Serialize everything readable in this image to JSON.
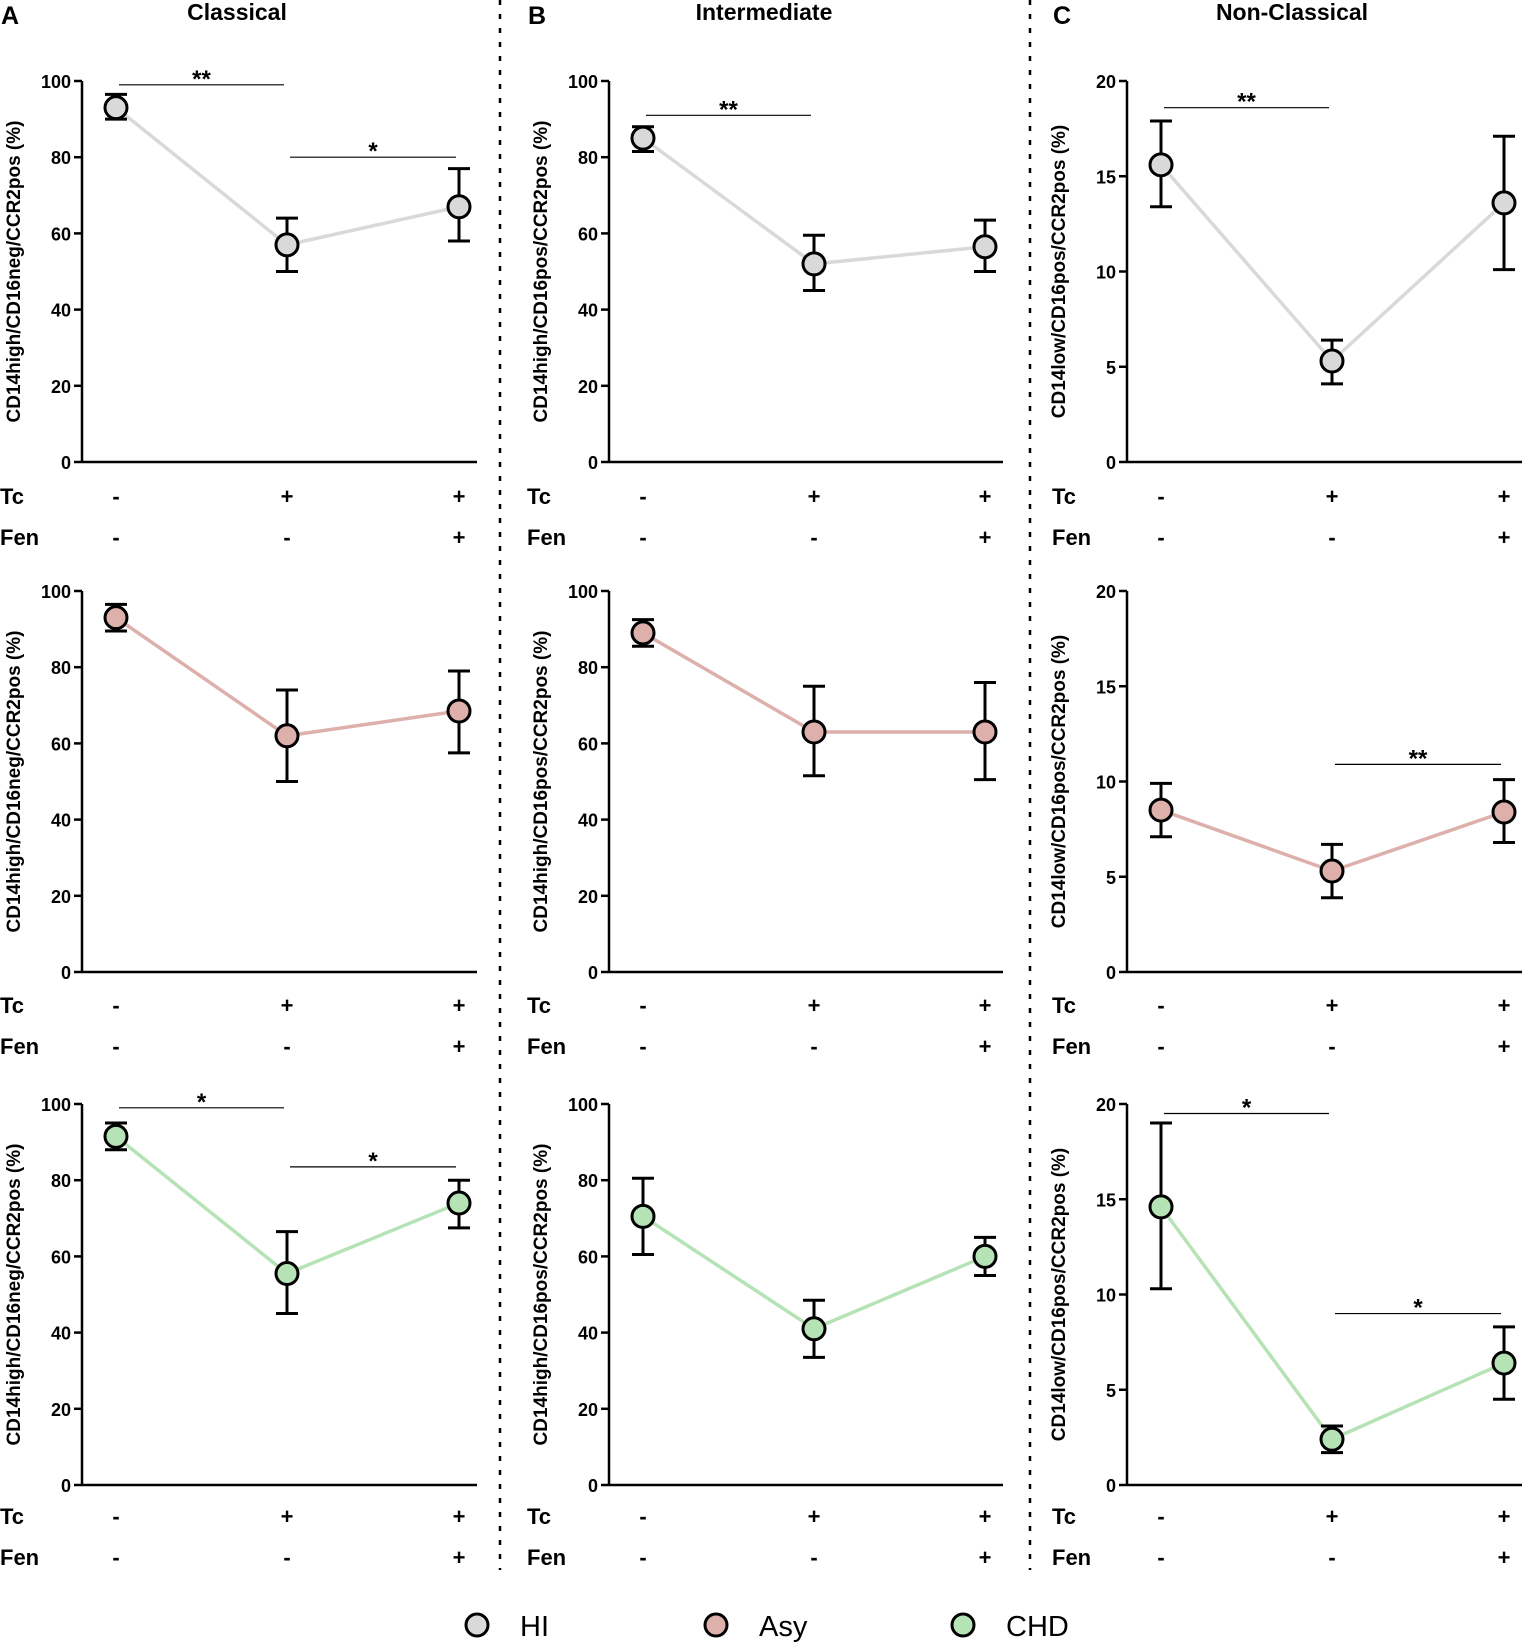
{
  "colors": {
    "HI": "#d9d9d9",
    "Asy": "#ddb0ab",
    "CHD": "#b6e3b5",
    "axis": "#000000",
    "divider": "#000000"
  },
  "legend": [
    {
      "key": "HI",
      "label": "HI"
    },
    {
      "key": "Asy",
      "label": "Asy"
    },
    {
      "key": "CHD",
      "label": "CHD"
    }
  ],
  "conditions": {
    "row1_label": "Tc",
    "row2_label": "Fen",
    "tc": [
      "-",
      "+",
      "+"
    ],
    "fen": [
      "-",
      "-",
      "+"
    ]
  },
  "chart_data": [
    {
      "type": "line",
      "panel": "A",
      "column_title": "Classical",
      "group": "HI",
      "ylabel": "CD14high/CD16neg/CCR2pos (%)",
      "ylim": [
        0,
        100
      ],
      "yticks": [
        0,
        20,
        40,
        60,
        80,
        100
      ],
      "values": [
        93,
        57,
        67
      ],
      "err_low": [
        90,
        50,
        58
      ],
      "err_high": [
        96.5,
        64,
        77
      ],
      "sig": [
        {
          "from": 0,
          "to": 1,
          "label": "**",
          "y": 99
        },
        {
          "from": 1,
          "to": 2,
          "label": "*",
          "y": 80
        }
      ]
    },
    {
      "type": "line",
      "panel": "B",
      "column_title": "Intermediate",
      "group": "HI",
      "ylabel": "CD14high/CD16pos/CCR2pos (%)",
      "ylim": [
        0,
        100
      ],
      "yticks": [
        0,
        20,
        40,
        60,
        80,
        100
      ],
      "values": [
        85,
        52,
        56.5
      ],
      "err_low": [
        81.5,
        45,
        50
      ],
      "err_high": [
        88,
        59.5,
        63.5
      ],
      "sig": [
        {
          "from": 0,
          "to": 1,
          "label": "**",
          "y": 91
        }
      ]
    },
    {
      "type": "line",
      "panel": "C",
      "column_title": "Non-Classical",
      "group": "HI",
      "ylabel": "CD14low/CD16pos/CCR2pos (%)",
      "ylim": [
        0,
        20
      ],
      "yticks": [
        0,
        5,
        10,
        15,
        20
      ],
      "values": [
        15.6,
        5.3,
        13.6
      ],
      "err_low": [
        13.4,
        4.1,
        10.1
      ],
      "err_high": [
        17.9,
        6.4,
        17.1
      ],
      "sig": [
        {
          "from": 0,
          "to": 1,
          "label": "**",
          "y": 18.6
        }
      ]
    },
    {
      "type": "line",
      "panel": "",
      "column_title": "",
      "group": "Asy",
      "ylabel": "CD14high/CD16neg/CCR2pos (%)",
      "ylim": [
        0,
        100
      ],
      "yticks": [
        0,
        20,
        40,
        60,
        80,
        100
      ],
      "values": [
        93,
        62,
        68.5
      ],
      "err_low": [
        89.5,
        50,
        57.5
      ],
      "err_high": [
        96.5,
        74,
        79
      ],
      "sig": []
    },
    {
      "type": "line",
      "panel": "",
      "column_title": "",
      "group": "Asy",
      "ylabel": "CD14high/CD16pos/CCR2pos (%)",
      "ylim": [
        0,
        100
      ],
      "yticks": [
        0,
        20,
        40,
        60,
        80,
        100
      ],
      "values": [
        89,
        63,
        63
      ],
      "err_low": [
        85.5,
        51.5,
        50.5
      ],
      "err_high": [
        92.5,
        75,
        76
      ],
      "sig": []
    },
    {
      "type": "line",
      "panel": "",
      "column_title": "",
      "group": "Asy",
      "ylabel": "CD14low/CD16pos/CCR2pos (%)",
      "ylim": [
        0,
        20
      ],
      "yticks": [
        0,
        5,
        10,
        15,
        20
      ],
      "values": [
        8.5,
        5.3,
        8.4
      ],
      "err_low": [
        7.1,
        3.9,
        6.8
      ],
      "err_high": [
        9.9,
        6.7,
        10.1
      ],
      "sig": [
        {
          "from": 1,
          "to": 2,
          "label": "**",
          "y": 10.9
        }
      ]
    },
    {
      "type": "line",
      "panel": "",
      "column_title": "",
      "group": "CHD",
      "ylabel": "CD14high/CD16neg/CCR2pos (%)",
      "ylim": [
        0,
        100
      ],
      "yticks": [
        0,
        20,
        40,
        60,
        80,
        100
      ],
      "values": [
        91.5,
        55.5,
        74
      ],
      "err_low": [
        88,
        45,
        67.5
      ],
      "err_high": [
        95,
        66.5,
        80
      ],
      "sig": [
        {
          "from": 0,
          "to": 1,
          "label": "*",
          "y": 99
        },
        {
          "from": 1,
          "to": 2,
          "label": "*",
          "y": 83.5
        }
      ]
    },
    {
      "type": "line",
      "panel": "",
      "column_title": "",
      "group": "CHD",
      "ylabel": "CD14high/CD16pos/CCR2pos (%)",
      "ylim": [
        0,
        100
      ],
      "yticks": [
        0,
        20,
        40,
        60,
        80,
        100
      ],
      "values": [
        70.5,
        41,
        60
      ],
      "err_low": [
        60.5,
        33.5,
        55
      ],
      "err_high": [
        80.5,
        48.5,
        65
      ],
      "sig": []
    },
    {
      "type": "line",
      "panel": "",
      "column_title": "",
      "group": "CHD",
      "ylabel": "CD14low/CD16pos/CCR2pos (%)",
      "ylim": [
        0,
        20
      ],
      "yticks": [
        0,
        5,
        10,
        15,
        20
      ],
      "values": [
        14.6,
        2.4,
        6.4
      ],
      "err_low": [
        10.3,
        1.7,
        4.5
      ],
      "err_high": [
        19,
        3.1,
        8.3
      ],
      "sig": [
        {
          "from": 0,
          "to": 1,
          "label": "*",
          "y": 19.5
        },
        {
          "from": 1,
          "to": 2,
          "label": "*",
          "y": 9
        }
      ]
    }
  ]
}
